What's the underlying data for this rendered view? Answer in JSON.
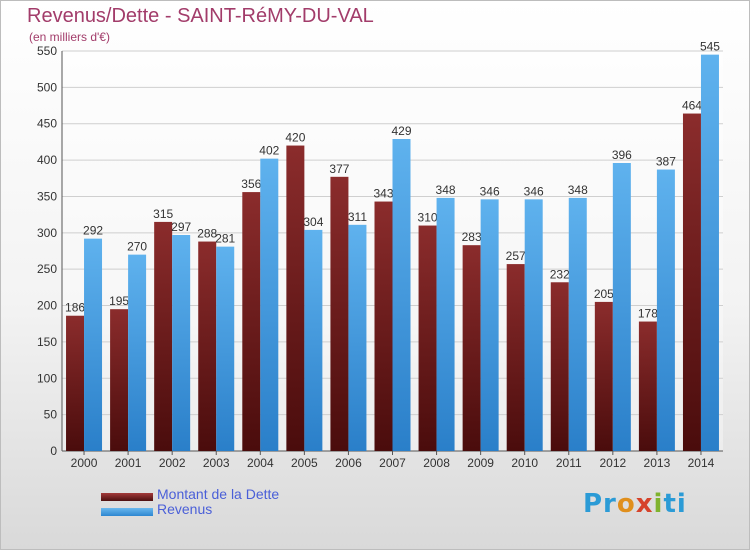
{
  "chart_data": {
    "type": "bar",
    "title": "Revenus/Dette - SAINT-RéMY-DU-VAL",
    "subtitle": "(en milliers d'€)",
    "categories": [
      "2000",
      "2001",
      "2002",
      "2003",
      "2004",
      "2005",
      "2006",
      "2007",
      "2008",
      "2009",
      "2010",
      "2011",
      "2012",
      "2013",
      "2014"
    ],
    "series": [
      {
        "name": "Montant de la Dette",
        "values": [
          186,
          195,
          315,
          288,
          356,
          420,
          377,
          343,
          310,
          283,
          257,
          232,
          205,
          178,
          464
        ],
        "color": "#7a1c1c"
      },
      {
        "name": "Revenus",
        "values": [
          292,
          270,
          297,
          281,
          402,
          304,
          311,
          429,
          348,
          346,
          346,
          348,
          396,
          387,
          545
        ],
        "color": "#3f9fe4"
      }
    ],
    "ylim": [
      0,
      550
    ],
    "yticks": [
      0,
      50,
      100,
      150,
      200,
      250,
      300,
      350,
      400,
      450,
      500,
      550
    ],
    "grid": true,
    "legend_position": "bottom-left"
  },
  "logo_text": [
    "Pr",
    "o",
    "x",
    "i",
    "ti"
  ]
}
